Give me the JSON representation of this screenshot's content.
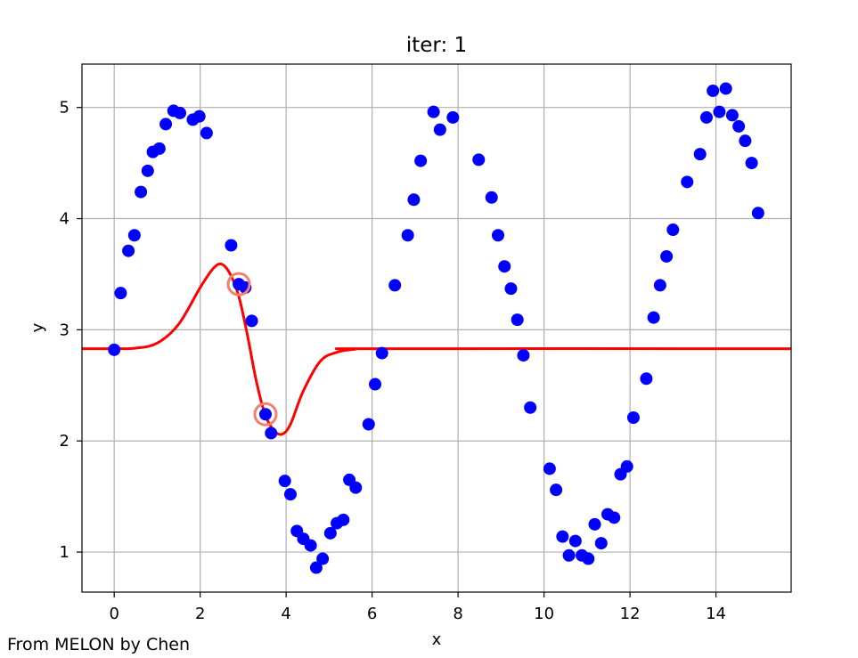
{
  "chart_data": {
    "type": "scatter",
    "title": "iter: 1",
    "xlabel": "x",
    "ylabel": "y",
    "xlim": [
      -0.75,
      15.75
    ],
    "ylim": [
      0.64,
      5.39
    ],
    "xticks": [
      "0",
      "2",
      "4",
      "6",
      "8",
      "10",
      "12",
      "14"
    ],
    "yticks": [
      "1",
      "2",
      "3",
      "4",
      "5"
    ],
    "grid": true,
    "colors": {
      "points": "#0000ff",
      "curve": "#ff0000",
      "highlight": "#f08070"
    },
    "series": [
      {
        "kind": "scatter",
        "points": [
          [
            0,
            2.82
          ],
          [
            0.15,
            3.33
          ],
          [
            0.33,
            3.71
          ],
          [
            0.47,
            3.85
          ],
          [
            0.62,
            4.24
          ],
          [
            0.78,
            4.43
          ],
          [
            0.9,
            4.6
          ],
          [
            1.05,
            4.63
          ],
          [
            1.2,
            4.85
          ],
          [
            1.38,
            4.97
          ],
          [
            1.53,
            4.95
          ],
          [
            1.83,
            4.89
          ],
          [
            1.98,
            4.92
          ],
          [
            2.15,
            4.77
          ],
          [
            2.72,
            3.76
          ],
          [
            2.9,
            3.41
          ],
          [
            3.05,
            3.38
          ],
          [
            3.2,
            3.08
          ],
          [
            3.52,
            2.24
          ],
          [
            3.65,
            2.07
          ],
          [
            3.97,
            1.64
          ],
          [
            4.1,
            1.52
          ],
          [
            4.25,
            1.19
          ],
          [
            4.4,
            1.12
          ],
          [
            4.57,
            1.06
          ],
          [
            4.7,
            0.86
          ],
          [
            4.85,
            0.94
          ],
          [
            5.03,
            1.17
          ],
          [
            5.18,
            1.26
          ],
          [
            5.33,
            1.29
          ],
          [
            5.47,
            1.65
          ],
          [
            5.62,
            1.58
          ],
          [
            5.92,
            2.15
          ],
          [
            6.07,
            2.51
          ],
          [
            6.23,
            2.79
          ],
          [
            6.53,
            3.4
          ],
          [
            6.83,
            3.85
          ],
          [
            6.97,
            4.17
          ],
          [
            7.13,
            4.52
          ],
          [
            7.43,
            4.96
          ],
          [
            7.58,
            4.8
          ],
          [
            7.88,
            4.91
          ],
          [
            8.48,
            4.53
          ],
          [
            8.78,
            4.19
          ],
          [
            8.93,
            3.85
          ],
          [
            9.08,
            3.57
          ],
          [
            9.23,
            3.37
          ],
          [
            9.38,
            3.09
          ],
          [
            9.52,
            2.77
          ],
          [
            9.68,
            2.3
          ],
          [
            10.13,
            1.75
          ],
          [
            10.28,
            1.56
          ],
          [
            10.43,
            1.14
          ],
          [
            10.58,
            0.97
          ],
          [
            10.73,
            1.1
          ],
          [
            10.88,
            0.97
          ],
          [
            11.03,
            0.94
          ],
          [
            11.18,
            1.25
          ],
          [
            11.33,
            1.08
          ],
          [
            11.48,
            1.34
          ],
          [
            11.63,
            1.31
          ],
          [
            11.78,
            1.7
          ],
          [
            11.93,
            1.77
          ],
          [
            12.08,
            2.21
          ],
          [
            12.38,
            2.56
          ],
          [
            12.55,
            3.11
          ],
          [
            12.7,
            3.4
          ],
          [
            12.85,
            3.66
          ],
          [
            13.0,
            3.9
          ],
          [
            13.33,
            4.33
          ],
          [
            13.63,
            4.58
          ],
          [
            13.78,
            4.91
          ],
          [
            13.93,
            5.15
          ],
          [
            14.08,
            4.96
          ],
          [
            14.23,
            5.17
          ],
          [
            14.38,
            4.93
          ],
          [
            14.53,
            4.83
          ],
          [
            14.68,
            4.7
          ],
          [
            14.83,
            4.5
          ],
          [
            14.98,
            4.05
          ]
        ]
      },
      {
        "kind": "line",
        "points": [
          [
            -0.75,
            2.83
          ],
          [
            0,
            2.83
          ],
          [
            0.5,
            2.835
          ],
          [
            1.0,
            2.88
          ],
          [
            1.5,
            3.05
          ],
          [
            2.0,
            3.38
          ],
          [
            2.3,
            3.55
          ],
          [
            2.5,
            3.59
          ],
          [
            2.7,
            3.5
          ],
          [
            2.9,
            3.3
          ],
          [
            3.1,
            2.95
          ],
          [
            3.3,
            2.55
          ],
          [
            3.5,
            2.25
          ],
          [
            3.7,
            2.1
          ],
          [
            3.9,
            2.06
          ],
          [
            4.1,
            2.15
          ],
          [
            4.4,
            2.45
          ],
          [
            4.8,
            2.72
          ],
          [
            5.2,
            2.8
          ],
          [
            5.6,
            2.825
          ],
          [
            6.0,
            2.83
          ],
          [
            15.75,
            2.83
          ]
        ]
      },
      {
        "kind": "highlight",
        "points": [
          [
            2.9,
            3.41
          ],
          [
            3.52,
            2.24
          ]
        ]
      }
    ]
  },
  "footer": {
    "credit": "From MELON by Chen"
  }
}
